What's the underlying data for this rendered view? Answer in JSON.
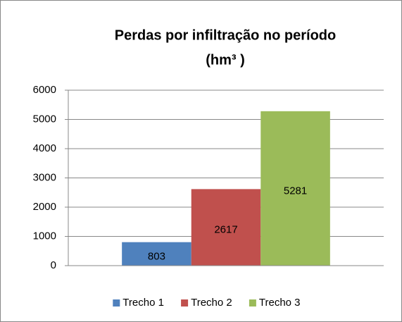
{
  "chart_data": {
    "type": "bar",
    "title": [
      "Perdas por infiltração no período",
      "(hm³ )"
    ],
    "categories": [
      null
    ],
    "series": [
      {
        "name": "Trecho 1",
        "color": "#4f81bd",
        "values": [
          803
        ]
      },
      {
        "name": "Trecho 2",
        "color": "#c0504d",
        "values": [
          2617
        ]
      },
      {
        "name": "Trecho 3",
        "color": "#9bbb59",
        "values": [
          5281
        ]
      }
    ],
    "ylim": [
      0,
      6000
    ],
    "yticks": [
      0,
      1000,
      2000,
      3000,
      4000,
      5000,
      6000
    ],
    "grid": true,
    "legend": "bottom"
  }
}
